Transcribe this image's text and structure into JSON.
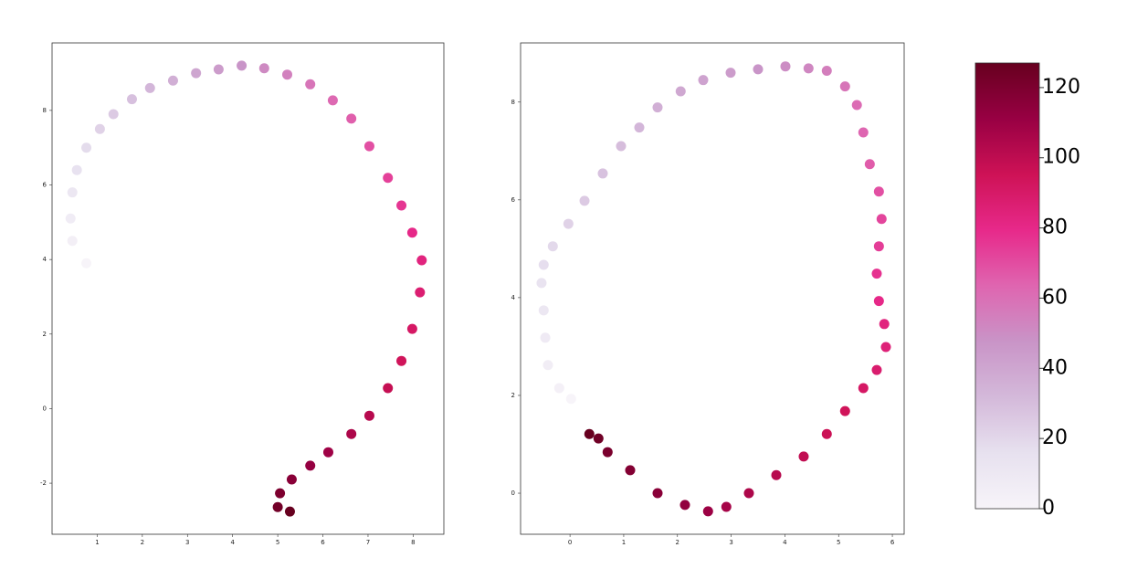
{
  "chart_data": [
    {
      "type": "scatter",
      "x": [
        0.76,
        0.45,
        0.41,
        0.45,
        0.55,
        0.76,
        1.06,
        1.36,
        1.77,
        2.17,
        2.68,
        3.19,
        3.69,
        4.2,
        4.7,
        5.21,
        5.72,
        6.22,
        6.63,
        7.03,
        7.44,
        7.74,
        7.98,
        8.19,
        8.15,
        7.98,
        7.74,
        7.44,
        7.03,
        6.63,
        6.12,
        5.72,
        5.31,
        5.05,
        5.0,
        5.27
      ],
      "values": [
        3.9,
        4.5,
        5.1,
        5.8,
        6.4,
        7.0,
        7.5,
        7.9,
        8.3,
        8.6,
        8.8,
        9.0,
        9.1,
        9.2,
        9.13,
        8.96,
        8.7,
        8.27,
        7.78,
        7.04,
        6.19,
        5.45,
        4.72,
        3.98,
        3.12,
        2.14,
        1.28,
        0.55,
        -0.19,
        -0.68,
        -1.17,
        -1.53,
        -1.9,
        -2.27,
        -2.64,
        -2.76
      ],
      "c": [
        0,
        4,
        7,
        11,
        15,
        18,
        22,
        25,
        29,
        33,
        36,
        40,
        44,
        47,
        51,
        54,
        58,
        62,
        65,
        69,
        73,
        76,
        80,
        83,
        87,
        91,
        94,
        98,
        102,
        105,
        109,
        112,
        116,
        120,
        123,
        127
      ],
      "xlim": [
        0.0,
        8.68
      ],
      "ylim": [
        -3.37,
        9.81
      ],
      "xticks": [
        1,
        2,
        3,
        4,
        5,
        6,
        7,
        8
      ],
      "yticks": [
        -2,
        0,
        2,
        4,
        6,
        8
      ]
    },
    {
      "type": "scatter",
      "x": [
        0.02,
        -0.2,
        -0.41,
        -0.46,
        -0.49,
        -0.53,
        -0.49,
        -0.32,
        -0.03,
        0.27,
        0.61,
        0.95,
        1.29,
        1.63,
        2.06,
        2.48,
        2.99,
        3.5,
        4.01,
        4.44,
        4.78,
        5.12,
        5.34,
        5.46,
        5.58,
        5.75,
        5.8,
        5.75,
        5.71,
        5.75,
        5.85,
        5.88,
        5.71,
        5.46,
        5.12,
        4.78,
        4.35,
        3.84,
        3.33,
        2.91,
        2.57,
        2.14,
        1.63,
        1.12,
        0.7,
        0.53,
        0.36
      ],
      "values": [
        1.93,
        2.15,
        2.62,
        3.18,
        3.74,
        4.3,
        4.67,
        5.05,
        5.51,
        5.98,
        6.54,
        7.1,
        7.48,
        7.89,
        8.22,
        8.45,
        8.6,
        8.67,
        8.73,
        8.69,
        8.64,
        8.32,
        7.94,
        7.38,
        6.73,
        6.17,
        5.61,
        5.05,
        4.49,
        3.93,
        3.46,
        2.99,
        2.52,
        2.15,
        1.68,
        1.21,
        0.75,
        0.37,
        0,
        -0.28,
        -0.37,
        -0.24,
        0,
        0.47,
        0.84,
        1.12,
        1.21
      ],
      "c": [
        0,
        3,
        6,
        8,
        11,
        14,
        17,
        19,
        22,
        25,
        28,
        30,
        33,
        36,
        39,
        41,
        44,
        47,
        50,
        52,
        55,
        58,
        61,
        63,
        66,
        69,
        72,
        74,
        77,
        80,
        83,
        85,
        88,
        91,
        94,
        96,
        99,
        102,
        105,
        107,
        110,
        113,
        116,
        118,
        121,
        124,
        127
      ],
      "xlim": [
        -0.92,
        6.22
      ],
      "ylim": [
        -0.84,
        9.21
      ],
      "xticks": [
        0,
        1,
        2,
        3,
        4,
        5,
        6
      ],
      "yticks": [
        0,
        2,
        4,
        6,
        8
      ]
    }
  ],
  "colorbar": {
    "clim": [
      0,
      127
    ],
    "ticks": [
      0,
      20,
      40,
      60,
      80,
      100,
      120
    ],
    "colormap": [
      "#f7f4f9",
      "#e7e1ef",
      "#d4b9da",
      "#c994c7",
      "#df65b0",
      "#e7298a",
      "#ce1256",
      "#980043",
      "#67001f"
    ]
  }
}
